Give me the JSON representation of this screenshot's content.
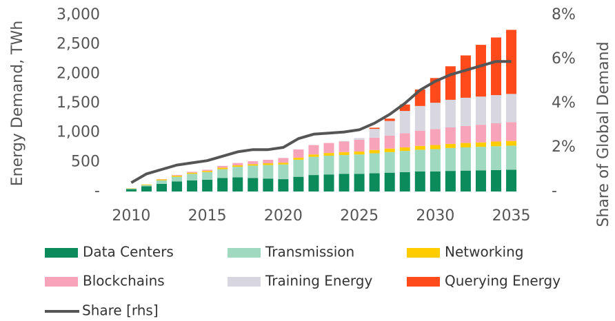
{
  "chart_data": {
    "type": "bar",
    "x": [
      2010,
      2011,
      2012,
      2013,
      2014,
      2015,
      2016,
      2017,
      2018,
      2019,
      2020,
      2021,
      2022,
      2023,
      2024,
      2025,
      2026,
      2027,
      2028,
      2029,
      2030,
      2031,
      2032,
      2033,
      2034,
      2035
    ],
    "xlim": [
      2009.3,
      2035.7
    ],
    "xticks": [
      2010,
      2015,
      2020,
      2025,
      2030,
      2035
    ],
    "ylim": [
      0,
      3000
    ],
    "yticks": [
      {
        "value": 0,
        "label": "-"
      },
      {
        "value": 500,
        "label": "500"
      },
      {
        "value": 1000,
        "label": "1,000"
      },
      {
        "value": 1500,
        "label": "1,500"
      },
      {
        "value": 2000,
        "label": "2,000"
      },
      {
        "value": 2500,
        "label": "2,500"
      },
      {
        "value": 3000,
        "label": "3,000"
      }
    ],
    "y2lim": [
      0,
      8
    ],
    "y2ticks": [
      {
        "value": 0,
        "label": "-"
      },
      {
        "value": 2,
        "label": "2%"
      },
      {
        "value": 4,
        "label": "4%"
      },
      {
        "value": 6,
        "label": "6%"
      },
      {
        "value": 8,
        "label": "8%"
      }
    ],
    "ylabel": "Energy Demand, TWh",
    "y2label": "Share of Global Demand",
    "stacked": true,
    "series": [
      {
        "name": "Data Centers",
        "color": "#0b8a5b",
        "values": [
          40,
          90,
          130,
          170,
          190,
          200,
          230,
          240,
          230,
          220,
          210,
          250,
          280,
          290,
          300,
          300,
          310,
          320,
          330,
          340,
          340,
          350,
          355,
          360,
          365,
          370
        ]
      },
      {
        "name": "Transmission",
        "color": "#9fd9bf",
        "values": [
          10,
          20,
          60,
          80,
          110,
          130,
          150,
          180,
          210,
          230,
          250,
          290,
          310,
          320,
          320,
          330,
          340,
          350,
          360,
          370,
          380,
          390,
          395,
          400,
          405,
          410
        ]
      },
      {
        "name": "Networking",
        "color": "#ffcc00",
        "values": [
          5,
          10,
          15,
          20,
          20,
          20,
          25,
          25,
          25,
          30,
          30,
          35,
          40,
          45,
          50,
          50,
          55,
          60,
          60,
          65,
          70,
          70,
          75,
          75,
          80,
          80
        ]
      },
      {
        "name": "Blockchains",
        "color": "#f7a3b9",
        "values": [
          0,
          0,
          5,
          10,
          15,
          20,
          30,
          40,
          50,
          60,
          80,
          140,
          160,
          170,
          180,
          200,
          210,
          220,
          240,
          260,
          270,
          280,
          290,
          300,
          310,
          320
        ]
      },
      {
        "name": "Training Energy",
        "color": "#d8d6df",
        "values": [
          0,
          0,
          0,
          0,
          0,
          0,
          0,
          0,
          0,
          0,
          0,
          0,
          0,
          0,
          10,
          30,
          150,
          250,
          380,
          420,
          450,
          470,
          480,
          480,
          480,
          480
        ]
      },
      {
        "name": "Querying Energy",
        "color": "#ff4a1c",
        "values": [
          0,
          0,
          0,
          0,
          0,
          0,
          0,
          0,
          0,
          0,
          0,
          0,
          0,
          0,
          0,
          0,
          20,
          40,
          110,
          280,
          420,
          570,
          720,
          880,
          980,
          1090
        ]
      },
      {
        "name": "Share [rhs]",
        "color": "#555555",
        "type": "line",
        "axis": "y2",
        "values": [
          0.4,
          0.8,
          1.0,
          1.2,
          1.3,
          1.4,
          1.6,
          1.8,
          1.9,
          1.9,
          2.0,
          2.4,
          2.6,
          2.65,
          2.7,
          2.8,
          3.1,
          3.5,
          4.0,
          4.6,
          5.0,
          5.3,
          5.5,
          5.7,
          5.9,
          5.9
        ]
      }
    ]
  }
}
